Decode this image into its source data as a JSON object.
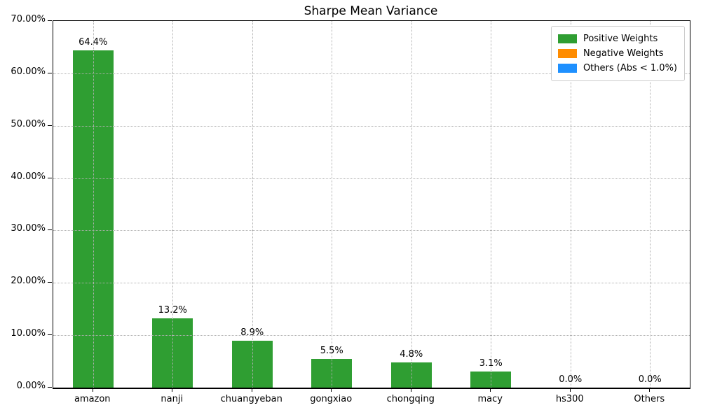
{
  "title": "Sharpe Mean Variance",
  "chart_data": {
    "type": "bar",
    "title": "Sharpe Mean Variance",
    "xlabel": "",
    "ylabel": "",
    "categories": [
      "amazon",
      "nanji",
      "chuangyeban",
      "gongxiao",
      "chongqing",
      "macy",
      "hs300",
      "Others"
    ],
    "values": [
      64.4,
      13.2,
      8.9,
      5.5,
      4.8,
      3.1,
      0.0,
      0.0
    ],
    "bar_labels": [
      "64.4%",
      "13.2%",
      "8.9%",
      "5.5%",
      "4.8%",
      "3.1%",
      "0.0%",
      "0.0%"
    ],
    "ylim": [
      0,
      70
    ],
    "ytick_values": [
      0,
      10,
      20,
      30,
      40,
      50,
      60,
      70
    ],
    "ytick_labels": [
      "0.00%",
      "10.00%",
      "20.00%",
      "30.00%",
      "40.00%",
      "50.00%",
      "60.00%",
      "70.00%"
    ],
    "grid": "dotted, horizontal and vertical, drawn above bars",
    "bar_color": "#2f9e32",
    "legend_position": "top-right",
    "legend": [
      {
        "label": "Positive Weights",
        "color": "#2f9e32"
      },
      {
        "label": "Negative Weights",
        "color": "#ff8c00"
      },
      {
        "label": "Others (Abs < 1.0%)",
        "color": "#1e90ff"
      }
    ]
  },
  "colors": {
    "background": "#ffffff",
    "positive_weights": "#2f9e32",
    "negative_weights": "#ff8c00",
    "others": "#1e90ff",
    "grid": "#b0b0b0",
    "axis": "#000000",
    "legend_border": "#cccccc"
  }
}
